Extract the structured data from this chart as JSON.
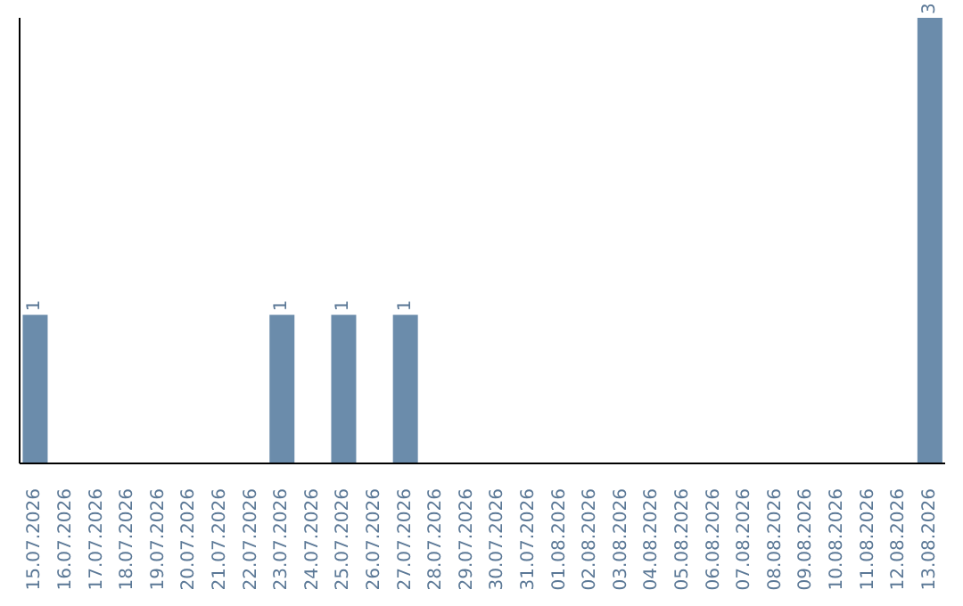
{
  "chart_data": {
    "type": "bar",
    "categories": [
      "15.07.2026",
      "16.07.2026",
      "17.07.2026",
      "18.07.2026",
      "19.07.2026",
      "20.07.2026",
      "21.07.2026",
      "22.07.2026",
      "23.07.2026",
      "24.07.2026",
      "25.07.2026",
      "26.07.2026",
      "27.07.2026",
      "28.07.2026",
      "29.07.2026",
      "30.07.2026",
      "31.07.2026",
      "01.08.2026",
      "02.08.2026",
      "03.08.2026",
      "04.08.2026",
      "05.08.2026",
      "06.08.2026",
      "07.08.2026",
      "08.08.2026",
      "09.08.2026",
      "10.08.2026",
      "11.08.2026",
      "12.08.2026",
      "13.08.2026"
    ],
    "values": [
      1,
      0,
      0,
      0,
      0,
      0,
      0,
      0,
      1,
      0,
      1,
      0,
      1,
      0,
      0,
      0,
      0,
      0,
      0,
      0,
      0,
      0,
      0,
      0,
      0,
      0,
      0,
      0,
      0,
      3
    ],
    "value_labels": [
      "1",
      null,
      null,
      null,
      null,
      null,
      null,
      null,
      "1",
      null,
      "1",
      null,
      "1",
      null,
      null,
      null,
      null,
      null,
      null,
      null,
      null,
      null,
      null,
      null,
      null,
      null,
      null,
      null,
      null,
      "3"
    ],
    "color": "#6b8cab",
    "grid": false,
    "legend": false,
    "tick_labels": "x"
  }
}
